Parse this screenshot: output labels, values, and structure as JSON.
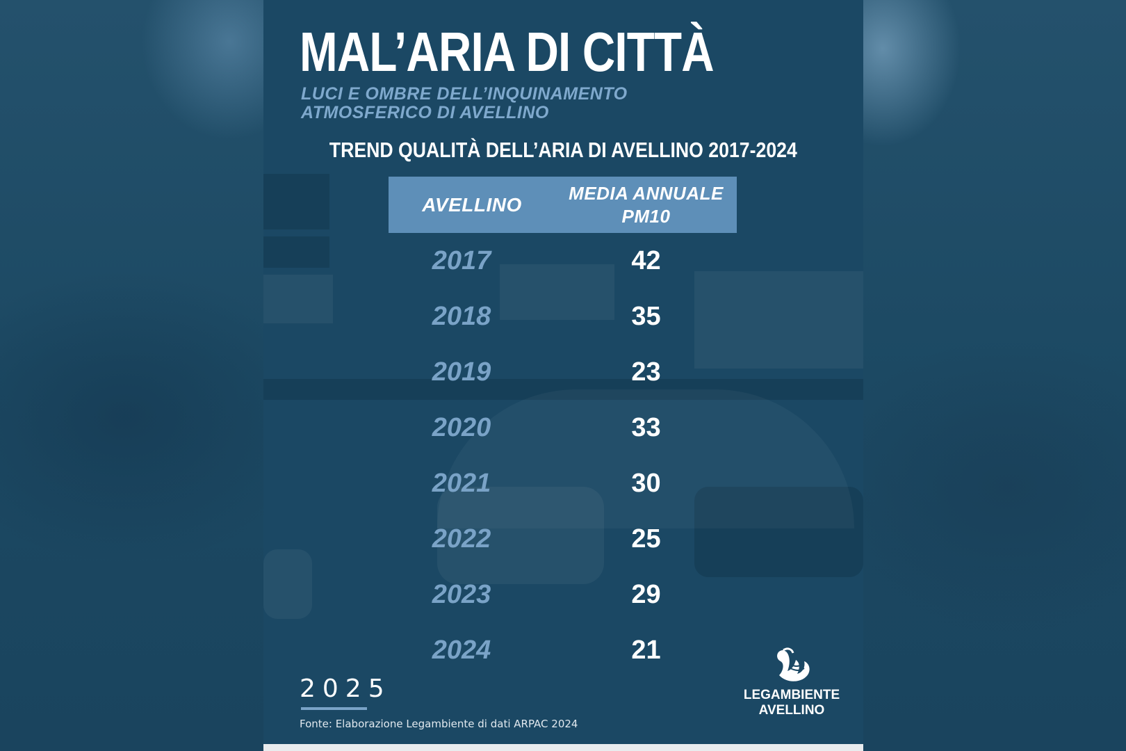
{
  "title": "MAL’ARIA DI CITTÀ",
  "subtitle": "LUCI E OMBRE DELL’INQUINAMENTO ATMOSFERICO DI AVELLINO",
  "table_title": "TREND QUALITÀ DELL’ARIA DI AVELLINO 2017-2024",
  "table": {
    "headers": [
      "AVELLINO",
      "MEDIA ANNUALE PM10"
    ],
    "rows": [
      {
        "year": "2017",
        "value": "42"
      },
      {
        "year": "2018",
        "value": "35"
      },
      {
        "year": "2019",
        "value": "23"
      },
      {
        "year": "2020",
        "value": "33"
      },
      {
        "year": "2021",
        "value": "30"
      },
      {
        "year": "2022",
        "value": "25"
      },
      {
        "year": "2023",
        "value": "29"
      },
      {
        "year": "2024",
        "value": "21"
      }
    ]
  },
  "footer": {
    "year": "2025",
    "source": "Fonte: Elaborazione Legambiente di dati ARPAC 2024"
  },
  "logo": {
    "line1": "LEGAMBIENTE",
    "line2": "AVELLINO"
  },
  "colors": {
    "background": "#1b4864",
    "header_fill": "#5e8fb8",
    "accent_text": "#7aa3c7"
  }
}
